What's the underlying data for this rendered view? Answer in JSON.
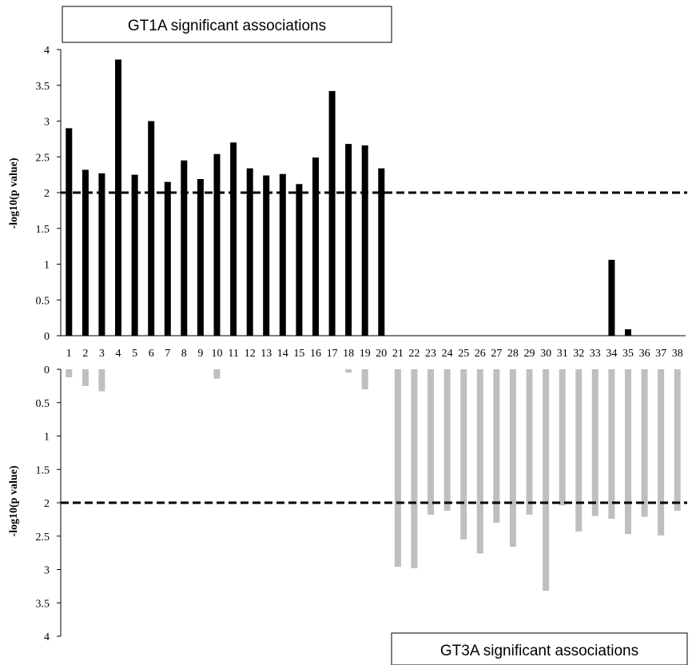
{
  "chart_data": [
    {
      "type": "bar",
      "title": "GT1A significant associations",
      "ylabel": "-log10(p value)",
      "ylim": [
        0,
        4
      ],
      "yticks": [
        0,
        0.5,
        1,
        1.5,
        2,
        2.5,
        3,
        3.5,
        4
      ],
      "ytick_labels": [
        "0",
        "0.5",
        "1",
        "1.5",
        "2",
        "2.5",
        "3",
        "3.5",
        "4"
      ],
      "threshold": 2,
      "bar_color": "#000000",
      "categories": [
        "1",
        "2",
        "3",
        "4",
        "5",
        "6",
        "7",
        "8",
        "9",
        "10",
        "11",
        "12",
        "13",
        "14",
        "15",
        "16",
        "17",
        "18",
        "19",
        "20",
        "21",
        "22",
        "23",
        "24",
        "25",
        "26",
        "27",
        "28",
        "29",
        "30",
        "31",
        "32",
        "33",
        "34",
        "35",
        "36",
        "37",
        "38"
      ],
      "values": [
        2.9,
        2.32,
        2.27,
        3.86,
        2.25,
        3.0,
        2.15,
        2.45,
        2.19,
        2.54,
        2.7,
        2.34,
        2.24,
        2.26,
        2.12,
        2.49,
        3.42,
        2.68,
        2.66,
        2.34,
        0,
        0,
        0,
        0,
        0,
        0,
        0,
        0,
        0,
        0,
        0,
        0,
        0,
        1.06,
        0.09,
        0,
        0,
        0
      ]
    },
    {
      "type": "bar",
      "title": "GT3A significant associations",
      "ylabel": "-log10(p value)",
      "ylim": [
        0,
        4
      ],
      "inverted": true,
      "yticks": [
        0,
        0.5,
        1,
        1.5,
        2,
        2.5,
        3,
        3.5,
        4
      ],
      "ytick_labels": [
        "0",
        "0.5",
        "1",
        "1.5",
        "2",
        "2.5",
        "3",
        "3.5",
        "4"
      ],
      "threshold": 2,
      "bar_color": "#bfbfbf",
      "categories": [
        "1",
        "2",
        "3",
        "4",
        "5",
        "6",
        "7",
        "8",
        "9",
        "10",
        "11",
        "12",
        "13",
        "14",
        "15",
        "16",
        "17",
        "18",
        "19",
        "20",
        "21",
        "22",
        "23",
        "24",
        "25",
        "26",
        "27",
        "28",
        "29",
        "30",
        "31",
        "32",
        "33",
        "34",
        "35",
        "36",
        "37",
        "38"
      ],
      "values": [
        0.12,
        0.25,
        0.33,
        0,
        0,
        0,
        0,
        0,
        0,
        0.14,
        0,
        0,
        0,
        0,
        0,
        0,
        0,
        0.05,
        0.3,
        0,
        2.96,
        2.98,
        2.18,
        2.12,
        2.55,
        2.76,
        2.3,
        2.66,
        2.18,
        3.32,
        2.04,
        2.43,
        2.2,
        2.24,
        2.47,
        2.21,
        2.49,
        2.12
      ]
    }
  ]
}
